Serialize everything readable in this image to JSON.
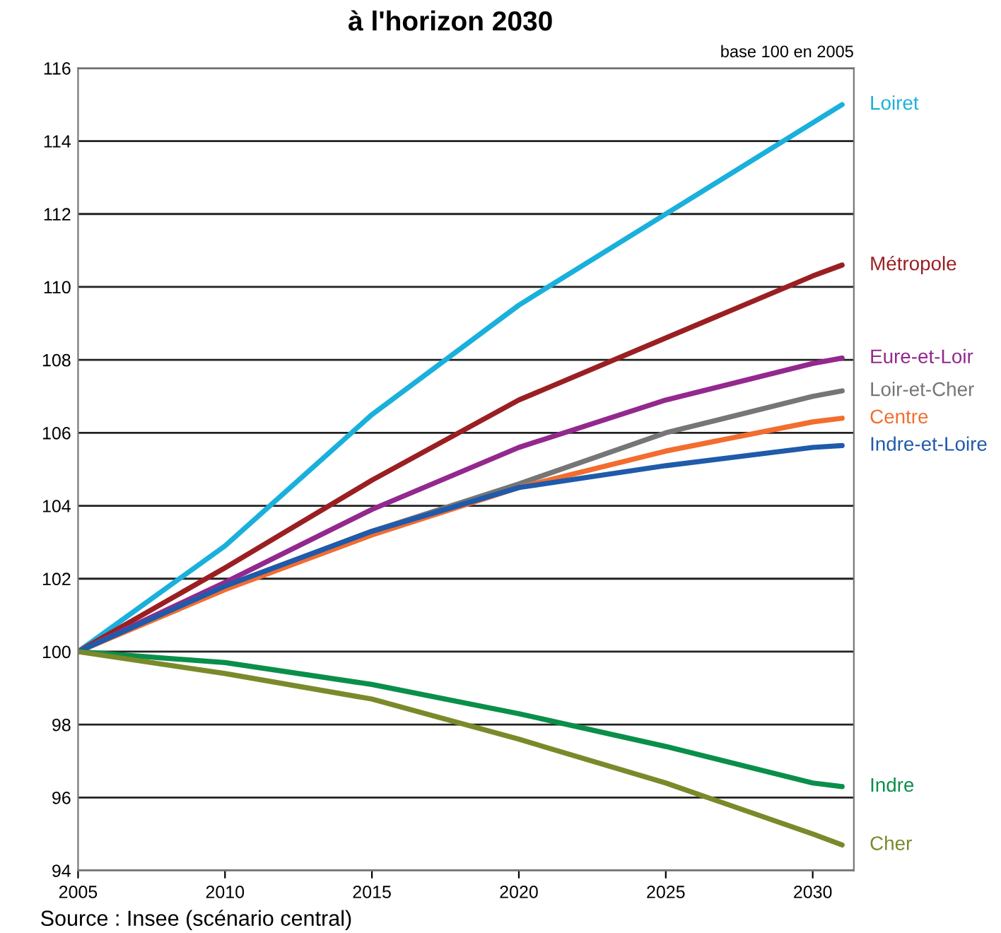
{
  "chart_data": {
    "type": "line",
    "title": "à l'horizon 2030",
    "x": [
      2005,
      2010,
      2015,
      2020,
      2025,
      2030,
      2031
    ],
    "series": [
      {
        "name": "Loiret",
        "color": "#1ab0dc",
        "values": [
          100,
          102.9,
          106.5,
          109.5,
          112,
          114.5,
          115
        ]
      },
      {
        "name": "Métropole",
        "color": "#9a1f22",
        "values": [
          100,
          102.3,
          104.7,
          106.9,
          108.6,
          110.3,
          110.6
        ]
      },
      {
        "name": "Eure-et-Loir",
        "color": "#93288e",
        "values": [
          100,
          101.9,
          103.9,
          105.6,
          106.9,
          107.9,
          108.05
        ]
      },
      {
        "name": "Loir-et-Cher",
        "color": "#767676",
        "values": [
          100,
          101.8,
          103.3,
          104.6,
          106.0,
          107.0,
          107.15
        ]
      },
      {
        "name": "Centre",
        "color": "#f26d2e",
        "values": [
          100,
          101.7,
          103.2,
          104.5,
          105.5,
          106.3,
          106.4
        ]
      },
      {
        "name": "Indre-et-Loire",
        "color": "#1f5aab",
        "values": [
          100,
          101.8,
          103.3,
          104.5,
          105.1,
          105.6,
          105.65
        ]
      },
      {
        "name": "Indre",
        "color": "#0a8f4a",
        "values": [
          100,
          99.7,
          99.1,
          98.3,
          97.4,
          96.4,
          96.3
        ]
      },
      {
        "name": "Cher",
        "color": "#7a8a2a",
        "values": [
          100,
          99.4,
          98.7,
          97.6,
          96.4,
          95.0,
          94.7
        ]
      }
    ],
    "xlim": [
      2005,
      2031.4
    ],
    "xticks": [
      2005,
      2010,
      2015,
      2020,
      2025,
      2030
    ],
    "ylim": [
      94,
      116
    ],
    "yticks": [
      94,
      96,
      98,
      100,
      102,
      104,
      106,
      108,
      110,
      112,
      114,
      116
    ],
    "grid": "y",
    "legend": false,
    "annotations": [
      "base 100 en 2005",
      "Source : Insee (scénario central)"
    ]
  }
}
